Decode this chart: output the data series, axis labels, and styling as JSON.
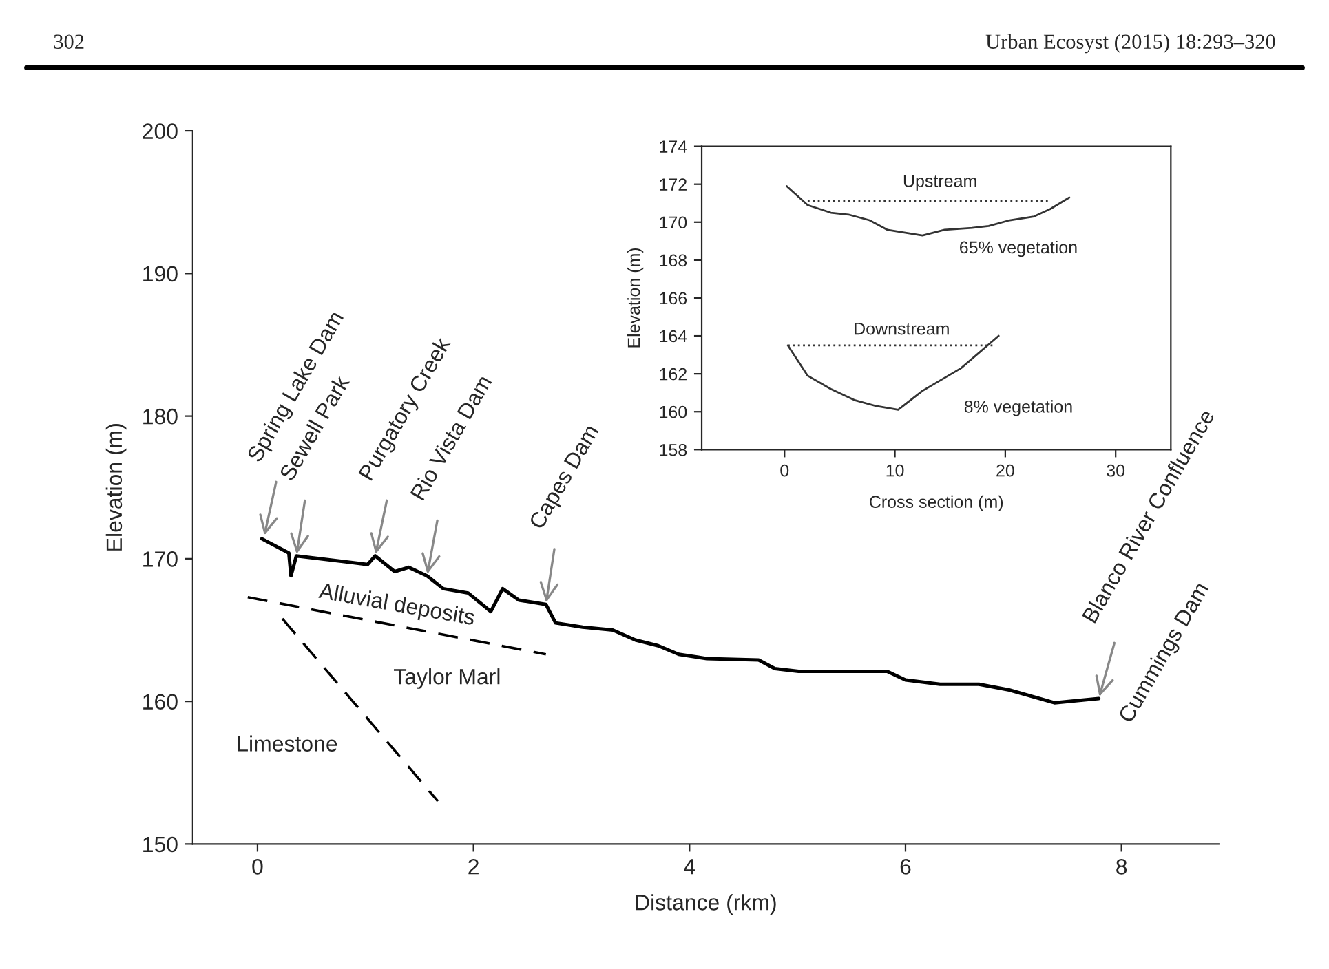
{
  "chart_data": [
    {
      "type": "line",
      "xlabel": "Distance (rkm)",
      "ylabel": "Elevation (m)",
      "xlim": [
        -0.6,
        8.9
      ],
      "ylim": [
        150,
        200
      ],
      "xticks": [
        0,
        2,
        4,
        6,
        8
      ],
      "yticks": [
        150,
        160,
        170,
        180,
        190,
        200
      ],
      "series": [
        {
          "color": "#000000",
          "line_style": "solid",
          "x": [
            0.04,
            0.29,
            0.31,
            0.36,
            1.02,
            1.09,
            1.27,
            1.4,
            1.57,
            1.72,
            1.95,
            2.16,
            2.27,
            2.42,
            2.67,
            2.76,
            3.01,
            3.29,
            3.5,
            3.71,
            3.9,
            4.16,
            4.64,
            4.79,
            5.01,
            5.83,
            6.0,
            6.32,
            6.68,
            6.96,
            7.38,
            7.79
          ],
          "values": [
            171.4,
            170.4,
            168.8,
            170.2,
            169.6,
            170.2,
            169.1,
            169.4,
            168.8,
            167.9,
            167.6,
            166.3,
            167.9,
            167.1,
            166.8,
            165.5,
            165.2,
            165.0,
            164.3,
            163.9,
            163.3,
            163.0,
            162.9,
            162.3,
            162.1,
            162.1,
            161.5,
            161.2,
            161.2,
            160.8,
            159.9,
            160.2
          ]
        },
        {
          "color": "#000000",
          "line_style": "dashed",
          "x": [
            -0.09,
            2.67
          ],
          "values": [
            167.3,
            163.3
          ]
        },
        {
          "color": "#000000",
          "line_style": "dashed",
          "x": [
            0.23,
            1.67
          ],
          "values": [
            165.8,
            153.0
          ]
        }
      ],
      "annotations": [
        "302",
        "Urban Ecosyst (2015) 18:293–320",
        {
          "text": "Spring Lake Dam",
          "x": 0.06,
          "y": 171.5
        },
        {
          "text": "Sewell Park",
          "x": 0.36,
          "y": 170.2
        },
        {
          "text": "Purgatory Creek",
          "x": 1.09,
          "y": 170.2
        },
        {
          "text": "Rio Vista Dam",
          "x": 1.57,
          "y": 168.8
        },
        {
          "text": "Capes Dam",
          "x": 2.67,
          "y": 166.8
        },
        {
          "text": "Blanco River Confluence",
          "x": 7.79,
          "y": 160.2
        },
        {
          "text": "Cummings Dam",
          "x": 7.79,
          "y": 160.2
        },
        "Alluvial deposits",
        "Taylor Marl",
        "Limestone"
      ]
    },
    {
      "type": "line",
      "xlabel": "Cross section (m)",
      "ylabel": "Elevation (m)",
      "xlim": [
        -7.5,
        35
      ],
      "ylim": [
        158,
        174
      ],
      "xticks": [
        0,
        10,
        20,
        30
      ],
      "yticks": [
        158,
        160,
        162,
        164,
        166,
        168,
        170,
        172,
        174
      ],
      "series": [
        {
          "color": "#333333",
          "line_style": "solid",
          "x": [
            0.2,
            2.1,
            4.2,
            5.8,
            7.7,
            9.3,
            12.5,
            14.5,
            17.0,
            18.5,
            20.4,
            22.6,
            24.1,
            25.8
          ],
          "values": [
            171.9,
            170.9,
            170.5,
            170.4,
            170.1,
            169.6,
            169.3,
            169.6,
            169.7,
            169.8,
            170.1,
            170.3,
            170.7,
            171.3
          ]
        },
        {
          "color": "#333333",
          "line_style": "dotted",
          "x": [
            2.1,
            24.1
          ],
          "values": [
            171.1,
            171.1
          ]
        },
        {
          "color": "#333333",
          "line_style": "solid",
          "x": [
            0.3,
            2.1,
            4.2,
            6.4,
            8.3,
            10.3,
            12.5,
            16.0,
            19.4
          ],
          "values": [
            163.5,
            161.9,
            161.2,
            160.6,
            160.3,
            160.1,
            161.1,
            162.3,
            164.0
          ]
        },
        {
          "color": "#333333",
          "line_style": "dotted",
          "x": [
            0.3,
            19.0
          ],
          "values": [
            163.5,
            163.5
          ]
        }
      ],
      "annotations": [
        "Upstream",
        "65% vegetation",
        "Downstream",
        "8% vegetation"
      ]
    }
  ]
}
